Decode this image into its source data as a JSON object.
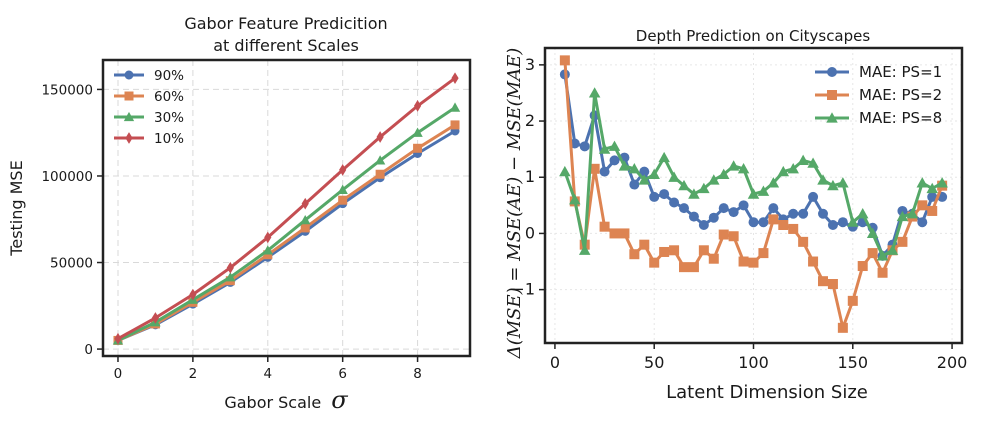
{
  "chart_data": [
    {
      "type": "line",
      "title": "Gabor Feature Predicition",
      "subtitle": "at different Scales",
      "xlabel": "Gabor Scale",
      "xlabel_symbol": "σ",
      "ylabel": "Testing MSE",
      "xlim": [
        -0.4,
        9.4
      ],
      "ylim": [
        -4000,
        167000
      ],
      "xticks": [
        0,
        2,
        4,
        6,
        8
      ],
      "yticks": [
        0,
        50000,
        100000,
        150000
      ],
      "grid": true,
      "legend_position": "upper-left",
      "x": [
        0,
        1,
        2,
        3,
        4,
        5,
        6,
        7,
        8,
        9
      ],
      "series": [
        {
          "name": "90%",
          "color": "#4c72b0",
          "marker": "circle",
          "values": [
            5000,
            14000,
            26000,
            38500,
            53000,
            68000,
            84000,
            99000,
            113000,
            126000
          ]
        },
        {
          "name": "60%",
          "color": "#dd8452",
          "marker": "square",
          "values": [
            5000,
            14500,
            27000,
            39500,
            54500,
            70000,
            86000,
            101000,
            116000,
            129500
          ]
        },
        {
          "name": "30%",
          "color": "#55a868",
          "marker": "triangle",
          "values": [
            5000,
            15500,
            28500,
            41500,
            57000,
            74500,
            92000,
            109000,
            125000,
            139500
          ]
        },
        {
          "name": "10%",
          "color": "#c44e52",
          "marker": "diamond",
          "values": [
            6000,
            18000,
            31500,
            47000,
            64500,
            84000,
            103500,
            122500,
            140500,
            156500
          ]
        }
      ]
    },
    {
      "type": "line",
      "title": "Depth Prediction on Cityscapes",
      "xlabel": "Latent Dimension Size",
      "ylabel": "Δ(MSE) = MSE(AE) − MSE(MAE)",
      "xlim": [
        -5,
        205
      ],
      "ylim": [
        -1.95,
        3.3
      ],
      "xticks": [
        0,
        50,
        100,
        150,
        200
      ],
      "yticks": [
        -1,
        0,
        1,
        2,
        3
      ],
      "grid": true,
      "legend_position": "upper-right",
      "x": [
        5,
        10,
        15,
        20,
        25,
        30,
        35,
        40,
        45,
        50,
        55,
        60,
        65,
        70,
        75,
        80,
        85,
        90,
        95,
        100,
        105,
        110,
        115,
        120,
        125,
        130,
        135,
        140,
        145,
        150,
        155,
        160,
        165,
        170,
        175,
        180,
        185,
        190,
        195
      ],
      "series": [
        {
          "name": "MAE: PS=1",
          "color": "#4c72b0",
          "marker": "circle",
          "values": [
            2.83,
            1.6,
            1.55,
            2.1,
            1.1,
            1.3,
            1.35,
            0.87,
            1.1,
            0.65,
            0.7,
            0.55,
            0.45,
            0.3,
            0.15,
            0.28,
            0.45,
            0.38,
            0.5,
            0.2,
            0.2,
            0.45,
            0.25,
            0.35,
            0.35,
            0.65,
            0.35,
            0.15,
            0.2,
            0.12,
            0.2,
            0.1,
            -0.4,
            -0.2,
            0.4,
            0.35,
            0.2,
            0.65,
            0.65
          ]
        },
        {
          "name": "MAE: PS=2",
          "color": "#dd8452",
          "marker": "square",
          "values": [
            3.08,
            0.57,
            -0.2,
            1.15,
            0.12,
            0.0,
            0.0,
            -0.37,
            -0.2,
            -0.52,
            -0.33,
            -0.3,
            -0.6,
            -0.6,
            -0.3,
            -0.45,
            -0.02,
            -0.05,
            -0.5,
            -0.52,
            -0.35,
            0.25,
            0.15,
            0.08,
            -0.15,
            -0.5,
            -0.85,
            -0.9,
            -1.68,
            -1.2,
            -0.58,
            -0.35,
            -0.7,
            -0.3,
            -0.15,
            0.3,
            0.5,
            0.4,
            0.85
          ]
        },
        {
          "name": "MAE: PS=8",
          "color": "#55a868",
          "marker": "triangle",
          "values": [
            1.1,
            0.6,
            -0.3,
            2.5,
            1.5,
            1.55,
            1.2,
            1.15,
            0.95,
            1.05,
            1.35,
            1.0,
            0.85,
            0.7,
            0.8,
            0.95,
            1.05,
            1.2,
            1.15,
            0.7,
            0.75,
            0.9,
            1.1,
            1.15,
            1.3,
            1.25,
            0.95,
            0.85,
            0.9,
            0.2,
            0.35,
            0.0,
            -0.4,
            -0.3,
            0.3,
            0.35,
            0.9,
            0.8,
            0.9
          ]
        }
      ]
    }
  ]
}
